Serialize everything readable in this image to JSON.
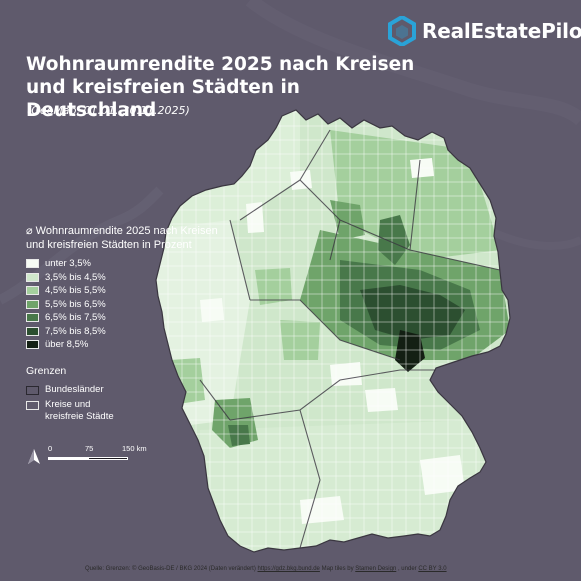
{
  "brand": {
    "name": "RealEstatePilot",
    "icon": "hexagon-logo-icon",
    "accent": "#2aa3d8"
  },
  "title_line1": "Wohnraumrendite 2025 nach Kreisen",
  "title_line2": "und kreisfreien Städten in Deutschland",
  "subtitle": "(GeoMap, 01.01.-30.11.2025)",
  "legend": {
    "title_line1": "⌀ Wohnraumrendite 2025 nach Kreisen",
    "title_line2": "und kreisfreien Städten in Prozent",
    "classes": [
      {
        "label": "unter 3,5%",
        "color": "#f7fcf5"
      },
      {
        "label": "3,5% bis 4,5%",
        "color": "#cfe7cb"
      },
      {
        "label": "4,5% bis 5,5%",
        "color": "#a4cf9d"
      },
      {
        "label": "5,5% bis 6,5%",
        "color": "#6fa46a"
      },
      {
        "label": "6,5% bis 7,5%",
        "color": "#48784a"
      },
      {
        "label": "7,5% bis 8,5%",
        "color": "#2c4f30"
      },
      {
        "label": "über 8,5%",
        "color": "#131f13"
      }
    ],
    "borders_title": "Grenzen",
    "borders": [
      {
        "label": "Bundesländer",
        "style": "bold"
      },
      {
        "label_line1": "Kreise und",
        "label_line2": "kreisfreie Städte",
        "style": "thin"
      }
    ]
  },
  "scale": {
    "labels": [
      "0",
      "75",
      "150 km"
    ],
    "north_icon": "north-arrow-icon"
  },
  "attribution": {
    "prefix": "Quelle: Grenzen: © GeoBasis-DE / BKG 2024 (Daten verändert)",
    "link1": "https://gdz.bkg.bund.de",
    "mid": " Map tiles by ",
    "link2": "Stamen Design",
    "mid2": ", under ",
    "link3": "CC BY 3.0"
  }
}
